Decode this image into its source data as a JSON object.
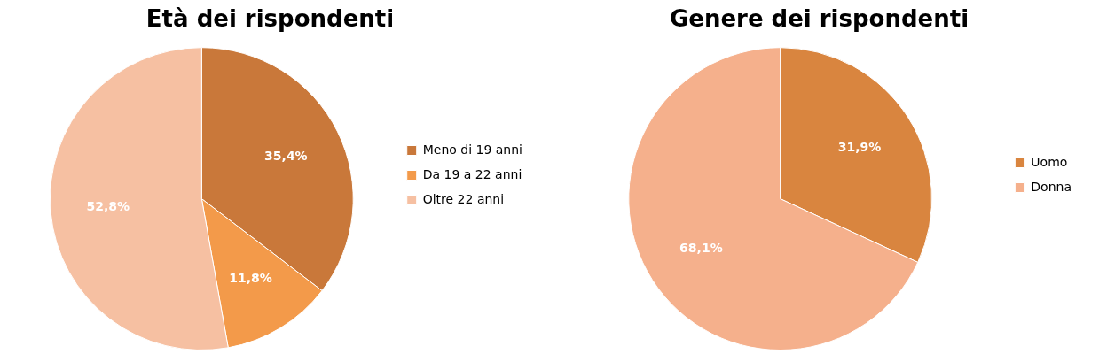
{
  "chart_data": [
    {
      "type": "pie",
      "title": "Età dei rispondenti",
      "categories": [
        "Meno di 19 anni",
        "Da 19 a 22 anni",
        "Oltre 22 anni"
      ],
      "values": [
        35.4,
        11.8,
        52.8
      ],
      "colors": [
        "#c9783a",
        "#f39a4a",
        "#f6c0a2"
      ],
      "value_labels": [
        "35,4%",
        "11,8%",
        "52,8%"
      ],
      "legend": "right"
    },
    {
      "type": "pie",
      "title": "Genere dei rispondenti",
      "categories": [
        "Uomo",
        "Donna"
      ],
      "values": [
        31.9,
        68.1
      ],
      "colors": [
        "#d9853f",
        "#f5b08c"
      ],
      "value_labels": [
        "31,9%",
        "68,1%"
      ],
      "legend": "right"
    }
  ]
}
